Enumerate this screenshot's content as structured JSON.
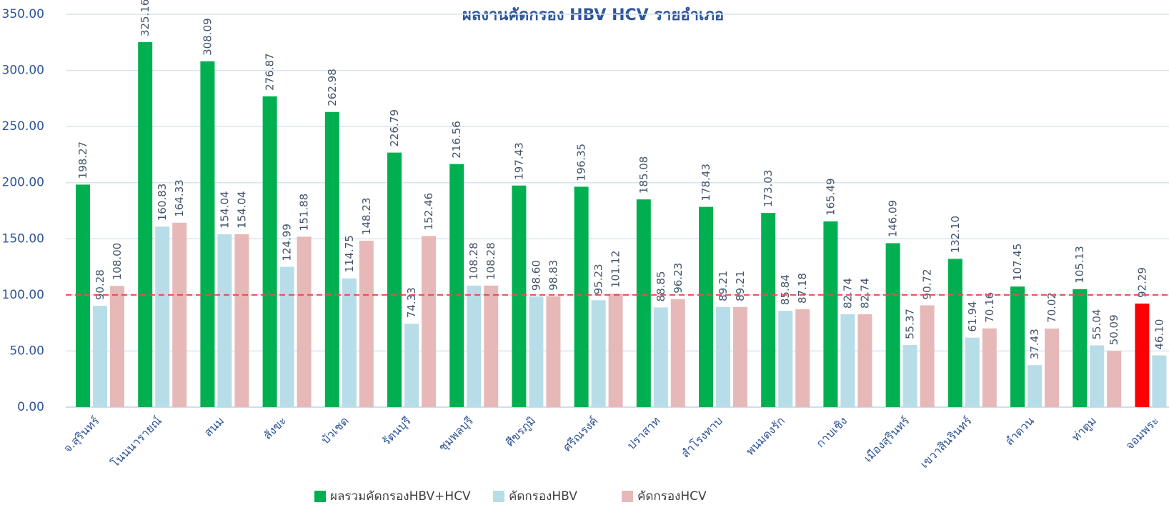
{
  "chart_data": {
    "type": "bar",
    "title": "ผลงานคัดกรอง HBV HCV รายอำเภอ",
    "categories": [
      "จ.สุรินทร์",
      "โนนนารายณ์",
      "สนม",
      "สังขะ",
      "บัวเชด",
      "รัตนบุรี",
      "ชุมพลบุรี",
      "ศีขรภูมิ",
      "ศรีณรงค์",
      "ปราสาท",
      "สำโรงทาบ",
      "พนมดงรัก",
      "กาบเชิง",
      "เมืองสุรินทร์",
      "เขวาสินรินทร์",
      "ลำดวน",
      "ท่าตูม",
      "จอมพระ"
    ],
    "series": [
      {
        "name": "ผลรวมคัดกรองHBV+HCV",
        "color": "#00b050",
        "colors": [
          "#00b050",
          "#00b050",
          "#00b050",
          "#00b050",
          "#00b050",
          "#00b050",
          "#00b050",
          "#00b050",
          "#00b050",
          "#00b050",
          "#00b050",
          "#00b050",
          "#00b050",
          "#00b050",
          "#00b050",
          "#00b050",
          "#00b050",
          "#ff0000"
        ],
        "values": [
          198.27,
          325.16,
          308.09,
          276.87,
          262.98,
          226.79,
          216.56,
          197.43,
          196.35,
          185.08,
          178.43,
          173.03,
          165.49,
          146.09,
          132.1,
          107.45,
          105.13,
          92.29
        ],
        "value_labels": [
          "198.27",
          "325.16",
          "308.09",
          "276.87",
          "262.98",
          "226.79",
          "216.56",
          "197.43",
          "196.35",
          "185.08",
          "178.43",
          "173.03",
          "165.49",
          "146.09",
          "132.10",
          "107.45",
          "105.13",
          "92.29"
        ]
      },
      {
        "name": "คัดกรองHBV",
        "color": "#b7dde8",
        "values": [
          90.28,
          160.83,
          154.04,
          124.99,
          114.75,
          74.33,
          108.28,
          98.6,
          95.23,
          88.85,
          89.21,
          85.84,
          82.74,
          55.37,
          61.94,
          37.43,
          55.04,
          46.1
        ],
        "value_labels": [
          "90.28",
          "160.83",
          "154.04",
          "124.99",
          "114.75",
          "74.33",
          "108.28",
          "98.60",
          "95.23",
          "88.85",
          "89.21",
          "85.84",
          "82.74",
          "55.37",
          "61.94",
          "37.43",
          "55.04",
          "46.10"
        ]
      },
      {
        "name": "คัดกรองHCV",
        "color": "#e6b9b8",
        "values": [
          108.0,
          164.33,
          154.04,
          151.88,
          148.23,
          152.46,
          108.28,
          98.83,
          101.12,
          96.23,
          89.21,
          87.18,
          82.74,
          90.72,
          70.16,
          70.02,
          50.09,
          null
        ],
        "value_labels": [
          "108.00",
          "164.33",
          "154.04",
          "151.88",
          "148.23",
          "152.46",
          "108.28",
          "98.83",
          "101.12",
          "96.23",
          "89.21",
          "87.18",
          "82.74",
          "90.72",
          "70.16",
          "70.02",
          "50.09",
          null
        ]
      }
    ],
    "ylim": [
      0,
      350
    ],
    "yticks": [
      {
        "value": 0,
        "label": "0.00"
      },
      {
        "value": 50,
        "label": "50.00"
      },
      {
        "value": 100,
        "label": "100.00"
      },
      {
        "value": 150,
        "label": "150.00"
      },
      {
        "value": 200,
        "label": "200.00"
      },
      {
        "value": 250,
        "label": "250.00"
      },
      {
        "value": 300,
        "label": "300.00"
      },
      {
        "value": 350,
        "label": "350.00"
      }
    ],
    "grid": true,
    "reference_line": {
      "value": 100,
      "color": "#e05050",
      "style": "dashed"
    },
    "legend": "bottom"
  }
}
